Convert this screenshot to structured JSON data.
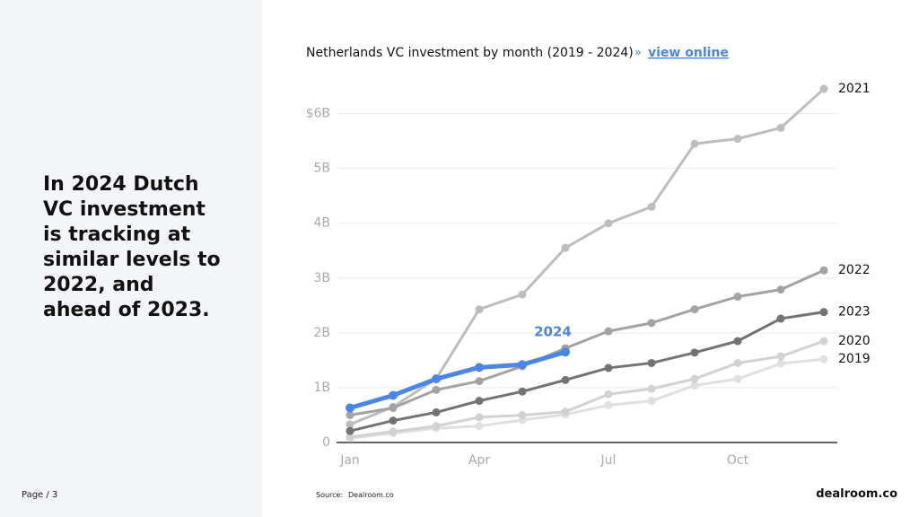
{
  "heading": "In 2024 Dutch VC investment is tracking at similar levels to 2022, and ahead of 2023.",
  "footer": {
    "page": "Page / 3",
    "source_label": "Source:",
    "source": "Dealroom.co",
    "brand": "dealroom.co"
  },
  "chart_data": {
    "type": "line",
    "title": "Netherlands VC investment by month (2019 - 2024)",
    "separator": "»",
    "link": "view online",
    "categories": [
      "Jan",
      null,
      null,
      "Apr",
      null,
      null,
      "Jul",
      null,
      null,
      "Oct",
      null,
      null
    ],
    "ylim": [
      0,
      6.5
    ],
    "yticks": [
      0,
      {
        "value": 1,
        "label": "1B"
      },
      {
        "value": 2,
        "label": "2B"
      },
      {
        "value": 3,
        "label": "3B"
      },
      {
        "value": 4,
        "label": "4B"
      },
      {
        "value": 5,
        "label": "5B"
      },
      {
        "value": 6,
        "label": "$6B"
      }
    ],
    "grid": true,
    "series": [
      {
        "name": "2019",
        "color": "#e0e0e0",
        "values": [
          0.08,
          0.17,
          0.26,
          0.3,
          0.41,
          0.51,
          0.68,
          0.76,
          1.04,
          1.16,
          1.44,
          1.52
        ]
      },
      {
        "name": "2020",
        "color": "#d2d2d2",
        "values": [
          0.1,
          0.2,
          0.3,
          0.46,
          0.5,
          0.56,
          0.88,
          0.98,
          1.16,
          1.45,
          1.57,
          1.85
        ]
      },
      {
        "name": "2021",
        "color": "#bdbdbd",
        "values": [
          0.33,
          0.65,
          1.16,
          2.43,
          2.7,
          3.55,
          4.0,
          4.3,
          5.45,
          5.54,
          5.74,
          6.45
        ]
      },
      {
        "name": "2022",
        "color": "#a3a3a3",
        "values": [
          0.5,
          0.63,
          0.96,
          1.12,
          1.39,
          1.72,
          2.03,
          2.18,
          2.43,
          2.66,
          2.79,
          3.14
        ]
      },
      {
        "name": "2023",
        "color": "#737373",
        "values": [
          0.21,
          0.4,
          0.55,
          0.76,
          0.93,
          1.14,
          1.36,
          1.45,
          1.64,
          1.85,
          2.26,
          2.38
        ]
      },
      {
        "name": "2024",
        "color": "#4a86e8",
        "values": [
          0.63,
          0.86,
          1.16,
          1.37,
          1.42,
          1.65,
          null,
          null,
          null,
          null,
          null,
          null
        ]
      }
    ]
  }
}
